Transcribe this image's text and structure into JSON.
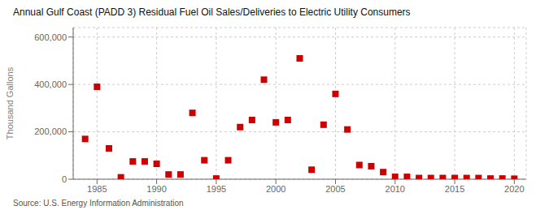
{
  "chart_data": {
    "type": "scatter",
    "title": "Annual Gulf Coast (PADD 3) Residual Fuel Oil Sales/Deliveries to Electric Utility Consumers",
    "ylabel": "Thousand Gallons",
    "annotations": [
      "Source: U.S. Energy Information Administration"
    ],
    "x": [
      1984,
      1985,
      1986,
      1987,
      1988,
      1989,
      1990,
      1991,
      1992,
      1993,
      1994,
      1995,
      1996,
      1997,
      1998,
      1999,
      2000,
      2001,
      2002,
      2003,
      2004,
      2005,
      2006,
      2007,
      2008,
      2009,
      2010,
      2011,
      2012,
      2013,
      2014,
      2015,
      2016,
      2017,
      2018,
      2019,
      2020
    ],
    "values": [
      170000,
      390000,
      130000,
      8000,
      75000,
      75000,
      65000,
      20000,
      20000,
      280000,
      80000,
      3000,
      80000,
      220000,
      250000,
      420000,
      240000,
      250000,
      510000,
      40000,
      230000,
      360000,
      210000,
      60000,
      55000,
      30000,
      10000,
      10000,
      5000,
      5000,
      5000,
      5000,
      5000,
      5000,
      3000,
      3000,
      2000
    ],
    "color": "#cc0000",
    "marker": "square",
    "xlim": [
      1983,
      2021
    ],
    "xticks": [
      1985,
      1990,
      1995,
      2000,
      2005,
      2010,
      2015,
      2020
    ],
    "ylim": [
      0,
      640000
    ],
    "yticks": [
      0,
      {
        "value": 200000,
        "label": "200,000"
      },
      {
        "value": 400000,
        "label": "400,000"
      },
      {
        "value": 600000,
        "label": "600,000"
      }
    ],
    "grid": true
  }
}
